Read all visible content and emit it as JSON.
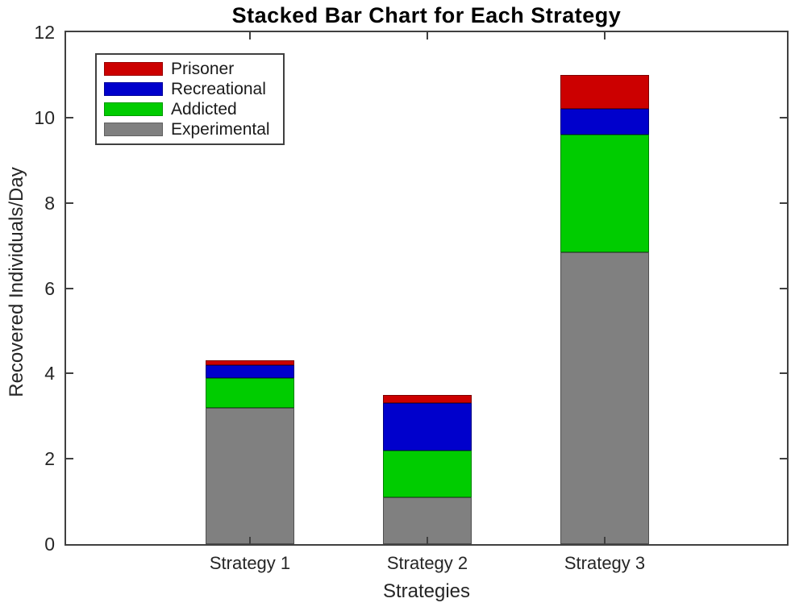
{
  "chart_data": {
    "type": "bar",
    "stacked": true,
    "title": "Stacked Bar Chart for Each Strategy",
    "xlabel": "Strategies",
    "ylabel": "Recovered Individuals/Day",
    "categories": [
      "Strategy 1",
      "Strategy 2",
      "Strategy 3"
    ],
    "series": [
      {
        "name": "Experimental",
        "color": "#808080",
        "values": [
          3.2,
          1.1,
          6.85
        ]
      },
      {
        "name": "Addicted",
        "color": "#00CC00",
        "values": [
          0.7,
          1.1,
          2.75
        ]
      },
      {
        "name": "Recreational",
        "color": "#0000CC",
        "values": [
          0.3,
          1.1,
          0.6
        ]
      },
      {
        "name": "Prisoner",
        "color": "#CC0000",
        "values": [
          0.1,
          0.2,
          0.8
        ]
      }
    ],
    "stack_totals": [
      4.3,
      3.5,
      11.0
    ],
    "ylim": [
      0,
      12
    ],
    "yticks": [
      0,
      2,
      4,
      6,
      8,
      10,
      12
    ],
    "grid": false,
    "legend": {
      "position": "top-left",
      "entries": [
        "Prisoner",
        "Recreational",
        "Addicted",
        "Experimental"
      ]
    }
  },
  "colors": {
    "axis": "#404040",
    "tick_text": "#262626",
    "title_text": "#000000",
    "background": "#FFFFFF"
  }
}
